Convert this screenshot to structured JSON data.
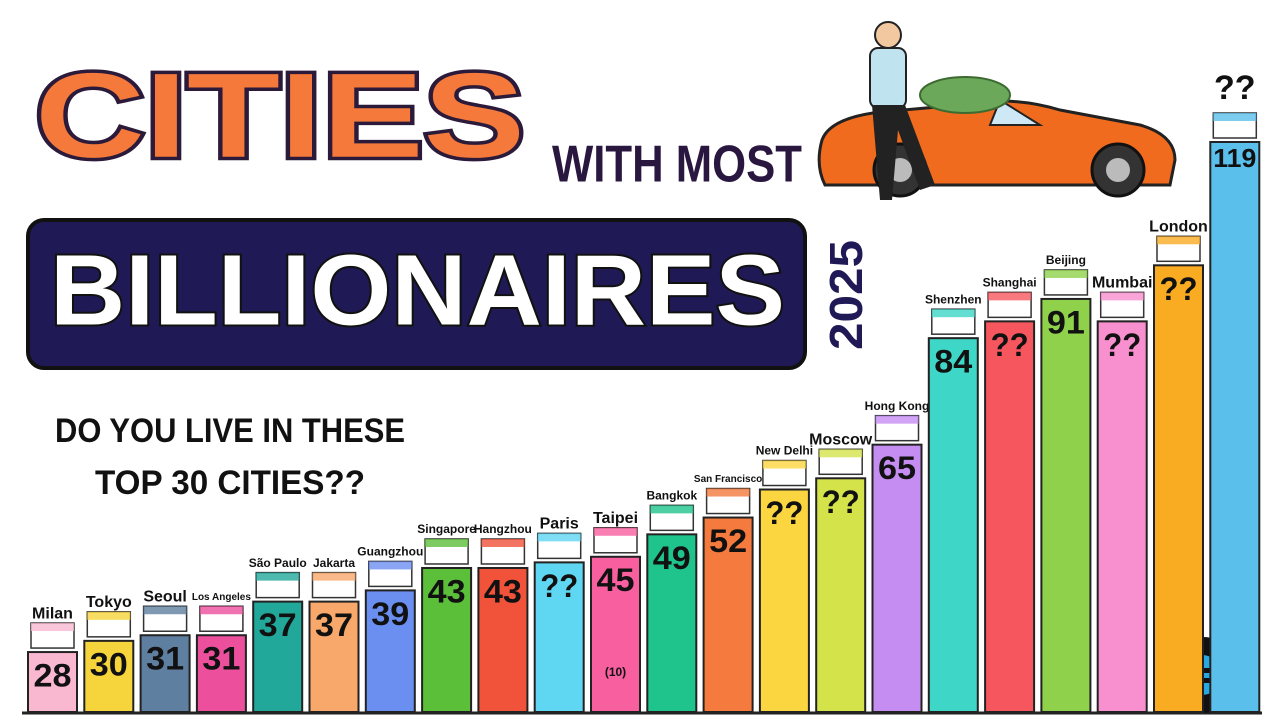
{
  "chart_data": {
    "type": "bar",
    "title": "CITIES",
    "subtitle": "WITH MOST",
    "headline": "BILLIONAIRES",
    "year": "2025",
    "question": [
      "DO YOU LIVE IN THESE",
      "TOP 30 CITIES??"
    ],
    "categories": [
      "Milan",
      "Tokyo",
      "Seoul",
      "Los Angeles",
      "São Paulo",
      "Jakarta",
      "Guangzhou",
      "Singapore",
      "Hangzhou",
      "Paris",
      "Taipei",
      "Bangkok",
      "San Francisco",
      "New Delhi",
      "Moscow",
      "Hong Kong",
      "Shenzhen",
      "Shanghai",
      "Beijing",
      "Mumbai",
      "London",
      "??"
    ],
    "values": [
      28,
      30,
      31,
      31,
      37,
      37,
      39,
      43,
      43,
      44,
      45,
      49,
      52,
      57,
      59,
      65,
      84,
      87,
      91,
      87,
      97,
      119
    ],
    "value_labels": [
      "28",
      "30",
      "31",
      "31",
      "37",
      "37",
      "39",
      "43",
      "43",
      "??",
      "45",
      "49",
      "52",
      "??",
      "??",
      "65",
      "84",
      "??",
      "91",
      "??",
      "??",
      "119"
    ],
    "colors": [
      "#f9b8d0",
      "#f6d43b",
      "#5f7fa0",
      "#ec4f9c",
      "#22a89a",
      "#f8a86a",
      "#6b8ff0",
      "#5cbf3a",
      "#f0533a",
      "#5fd6f2",
      "#f75f9f",
      "#1fc48c",
      "#f47a3d",
      "#fbd640",
      "#d5e34a",
      "#c58df2",
      "#3ed6c7",
      "#f6575f",
      "#8fd14a",
      "#f88fce",
      "#f9ab22",
      "#5bbfec"
    ],
    "annotations": [
      {
        "category": "Taipei",
        "text": "(10)"
      }
    ]
  }
}
